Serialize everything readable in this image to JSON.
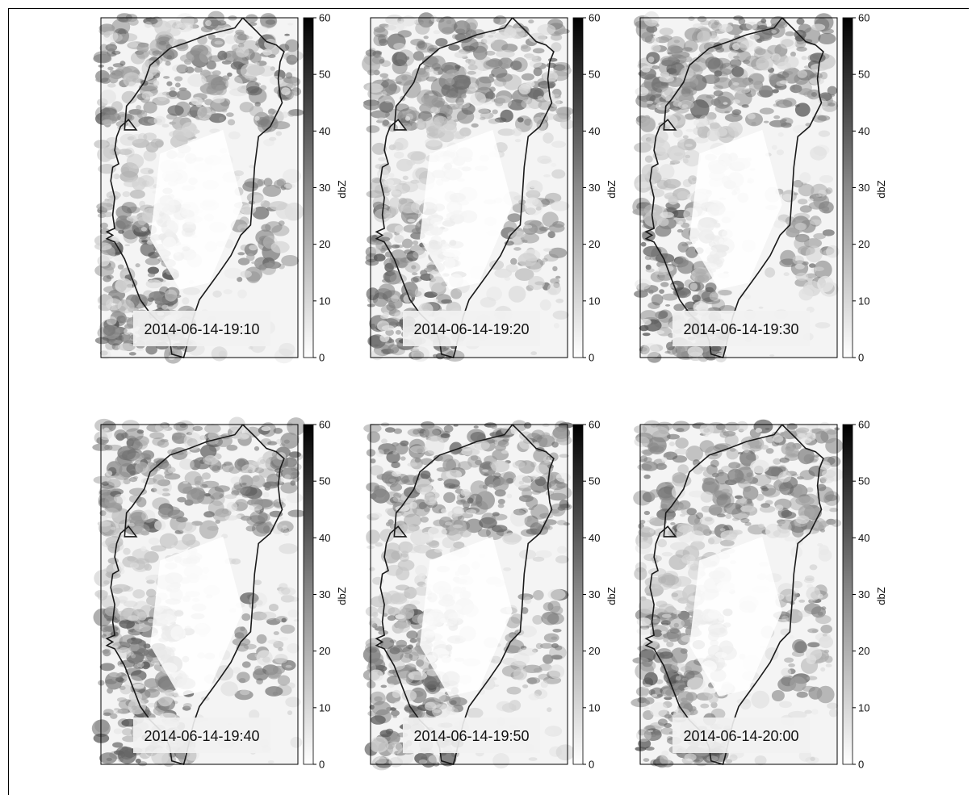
{
  "chart_data": {
    "type": "heatmap",
    "description_units": "dbZ",
    "colormap": [
      "#ffffff",
      "#000000"
    ],
    "vmin": 0,
    "vmax": 60,
    "colorbar": {
      "label": "dbZ",
      "ticks": [
        "0",
        "10",
        "20",
        "30",
        "40",
        "50",
        "60"
      ]
    },
    "panels": [
      {
        "timestamp": "2014-06-14-19:10"
      },
      {
        "timestamp": "2014-06-14-19:20"
      },
      {
        "timestamp": "2014-06-14-19:30"
      },
      {
        "timestamp": "2014-06-14-19:40"
      },
      {
        "timestamp": "2014-06-14-19:50"
      },
      {
        "timestamp": "2014-06-14-20:00"
      }
    ]
  }
}
